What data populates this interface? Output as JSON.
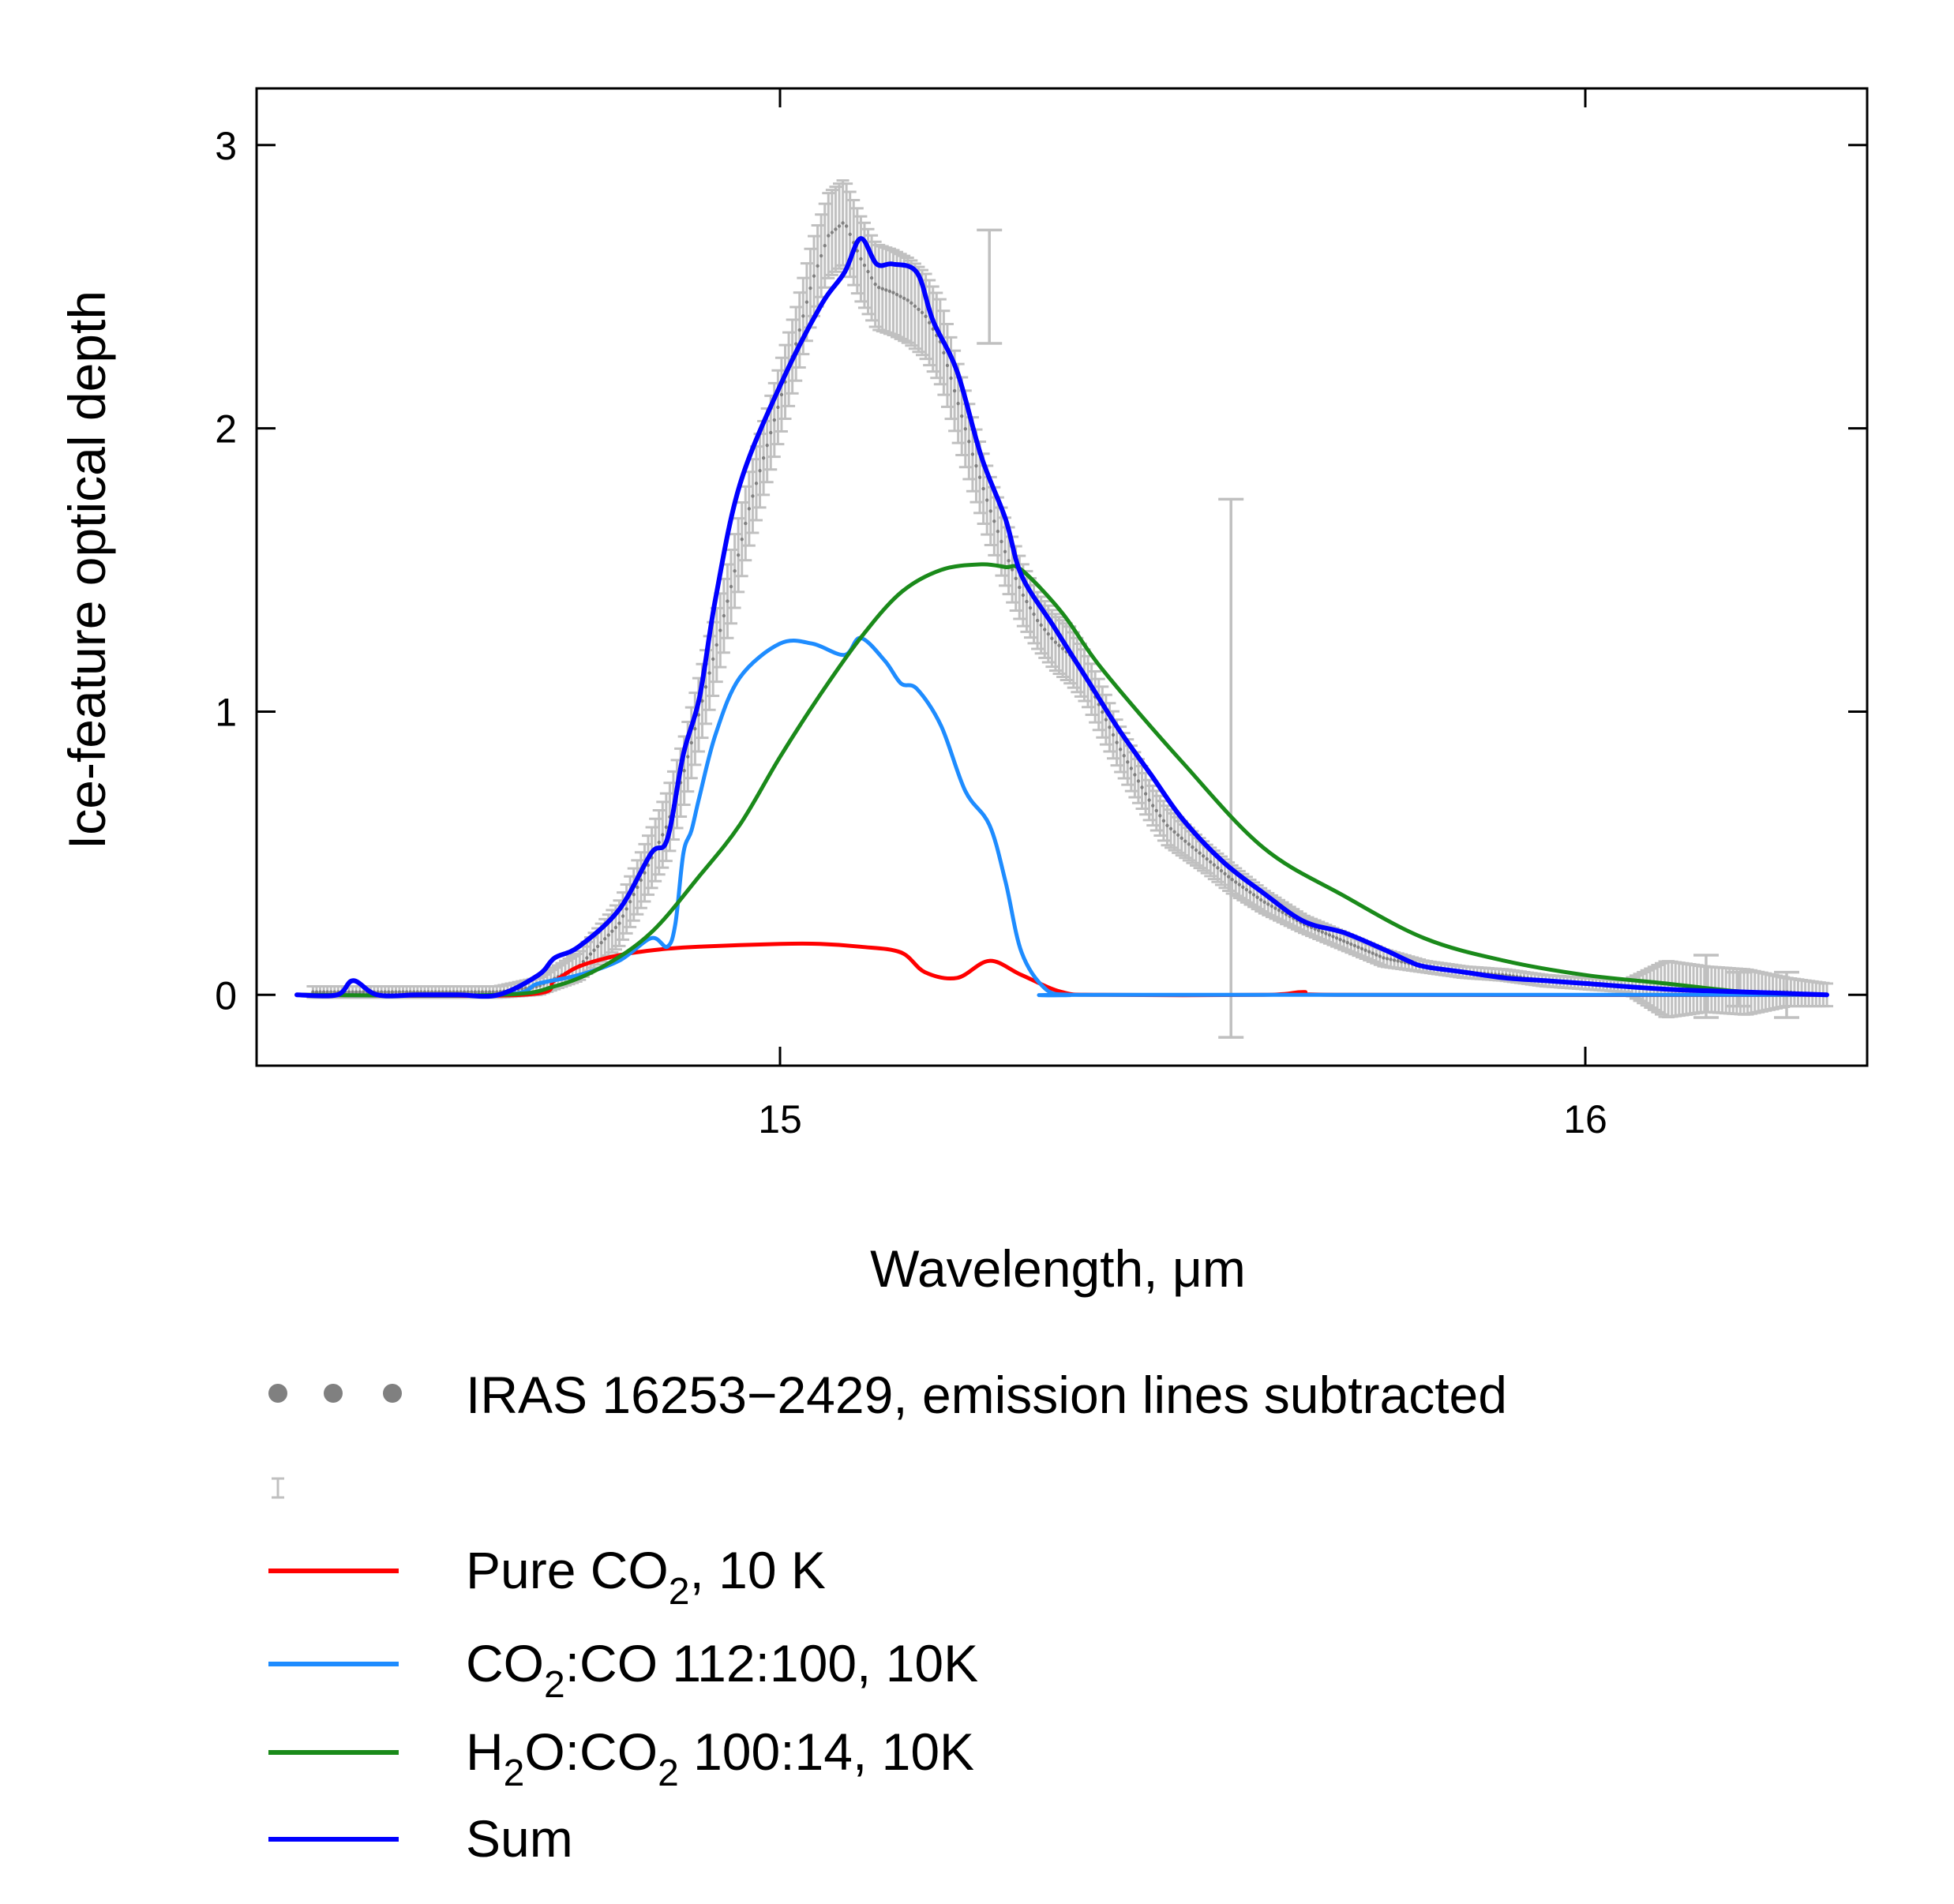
{
  "chart_data": {
    "type": "line",
    "title": "",
    "xlabel": "Wavelength, μm",
    "ylabel": "Ice-feature optical depth",
    "xlim": [
      14.35,
      16.35
    ],
    "ylim": [
      -0.25,
      3.2
    ],
    "xticks": [
      15,
      16
    ],
    "xtick_labels": [
      "15",
      "16"
    ],
    "yticks": [
      0,
      1,
      2,
      3
    ],
    "ytick_labels": [
      "0",
      "1",
      "2",
      "3"
    ],
    "grid": false,
    "legend_placement": "below",
    "observed": {
      "name": "IRAS 16253−2429, emission lines subtracted",
      "x": [
        14.42,
        14.5,
        14.55,
        14.6,
        14.65,
        14.7,
        14.75,
        14.8,
        14.83,
        14.86,
        14.88,
        14.9,
        14.92,
        14.94,
        14.96,
        14.98,
        15.0,
        15.02,
        15.04,
        15.06,
        15.08,
        15.1,
        15.12,
        15.14,
        15.16,
        15.18,
        15.2,
        15.22,
        15.24,
        15.26,
        15.28,
        15.3,
        15.32,
        15.34,
        15.36,
        15.38,
        15.4,
        15.42,
        15.44,
        15.46,
        15.48,
        15.5,
        15.53,
        15.56,
        15.6,
        15.65,
        15.7,
        15.75,
        15.8,
        15.85,
        15.9,
        15.95,
        16.0,
        16.05,
        16.1,
        16.15,
        16.2,
        16.25,
        16.3
      ],
      "y": [
        0.01,
        0.01,
        0.01,
        0.01,
        0.01,
        0.03,
        0.1,
        0.25,
        0.42,
        0.6,
        0.78,
        1.0,
        1.22,
        1.45,
        1.7,
        1.9,
        2.1,
        2.3,
        2.52,
        2.68,
        2.73,
        2.6,
        2.5,
        2.48,
        2.45,
        2.4,
        2.3,
        2.1,
        1.9,
        1.72,
        1.56,
        1.42,
        1.32,
        1.25,
        1.2,
        1.12,
        1.0,
        0.88,
        0.78,
        0.68,
        0.6,
        0.55,
        0.48,
        0.41,
        0.33,
        0.25,
        0.19,
        0.13,
        0.1,
        0.08,
        0.07,
        0.05,
        0.04,
        0.03,
        0.02,
        0.02,
        0.01,
        0.01,
        0.0
      ],
      "error": [
        0.02,
        0.02,
        0.02,
        0.02,
        0.02,
        0.03,
        0.05,
        0.08,
        0.1,
        0.12,
        0.12,
        0.13,
        0.13,
        0.13,
        0.13,
        0.13,
        0.13,
        0.13,
        0.14,
        0.15,
        0.15,
        0.15,
        0.15,
        0.15,
        0.15,
        0.15,
        0.15,
        0.14,
        0.13,
        0.12,
        0.12,
        0.11,
        0.1,
        0.1,
        0.1,
        0.09,
        0.09,
        0.08,
        0.08,
        0.07,
        0.07,
        0.06,
        0.05,
        0.05,
        0.04,
        0.03,
        0.03,
        0.03,
        0.02,
        0.02,
        0.02,
        0.02,
        0.02,
        0.02,
        0.1,
        0.08,
        0.08,
        0.05,
        0.04
      ],
      "large_error_bars": [
        {
          "x": 15.56,
          "y": 0.8,
          "error": 0.95
        },
        {
          "x": 15.26,
          "y": 2.5,
          "error": 0.2
        },
        {
          "x": 16.15,
          "y": 0.03,
          "error": 0.11
        },
        {
          "x": 16.19,
          "y": 0.02,
          "error": 0.06
        },
        {
          "x": 16.25,
          "y": 0.0,
          "error": 0.08
        }
      ]
    },
    "series": [
      {
        "name": "Pure CO2, 10 K",
        "color": "#ff0000",
        "x": [
          14.4,
          14.68,
          14.72,
          14.75,
          14.8,
          14.85,
          14.9,
          15.0,
          15.05,
          15.1,
          15.15,
          15.18,
          15.22,
          15.26,
          15.3,
          15.35,
          15.4,
          15.6,
          15.65,
          15.7,
          16.3
        ],
        "y": [
          0.0,
          0.0,
          0.05,
          0.1,
          0.14,
          0.16,
          0.17,
          0.18,
          0.18,
          0.17,
          0.15,
          0.08,
          0.06,
          0.12,
          0.07,
          0.01,
          0.0,
          0.0,
          0.01,
          0.0,
          0.0
        ]
      },
      {
        "name": "CO2:CO 112:100, 10K",
        "color": "#1e8cff",
        "x": [
          14.4,
          14.65,
          14.7,
          14.75,
          14.8,
          14.84,
          14.86,
          14.87,
          14.88,
          14.89,
          14.9,
          14.92,
          14.95,
          15.0,
          15.04,
          15.08,
          15.1,
          15.13,
          15.15,
          15.17,
          15.2,
          15.23,
          15.26,
          15.28,
          15.3,
          15.33,
          15.36,
          15.4,
          16.3
        ],
        "y": [
          0.0,
          0.0,
          0.04,
          0.07,
          0.12,
          0.2,
          0.17,
          0.25,
          0.5,
          0.58,
          0.7,
          0.92,
          1.12,
          1.24,
          1.24,
          1.2,
          1.26,
          1.18,
          1.1,
          1.08,
          0.95,
          0.72,
          0.6,
          0.4,
          0.15,
          0.02,
          0.0,
          0.0,
          0.0
        ]
      },
      {
        "name": "H2O:CO2 100:14, 10K",
        "color": "#1a8a1a",
        "x": [
          14.4,
          14.65,
          14.72,
          14.78,
          14.84,
          14.9,
          14.95,
          15.0,
          15.05,
          15.1,
          15.15,
          15.2,
          15.25,
          15.28,
          15.3,
          15.35,
          15.4,
          15.5,
          15.6,
          15.7,
          15.8,
          15.9,
          16.0,
          16.1,
          16.2,
          16.3
        ],
        "y": [
          0.0,
          0.0,
          0.03,
          0.1,
          0.22,
          0.42,
          0.6,
          0.84,
          1.06,
          1.26,
          1.42,
          1.5,
          1.52,
          1.51,
          1.5,
          1.35,
          1.15,
          0.82,
          0.52,
          0.35,
          0.2,
          0.12,
          0.07,
          0.04,
          0.01,
          0.0
        ]
      },
      {
        "name": "Sum",
        "color": "#0000ff",
        "x": [
          14.4,
          14.45,
          14.47,
          14.5,
          14.55,
          14.6,
          14.65,
          14.7,
          14.72,
          14.75,
          14.8,
          14.84,
          14.86,
          14.88,
          14.9,
          14.92,
          14.95,
          15.0,
          15.05,
          15.08,
          15.1,
          15.12,
          15.14,
          15.17,
          15.19,
          15.22,
          15.25,
          15.28,
          15.3,
          15.34,
          15.38,
          15.42,
          15.46,
          15.5,
          15.55,
          15.6,
          15.65,
          15.7,
          15.75,
          15.78,
          15.8,
          15.85,
          15.9,
          15.95,
          16.0,
          16.1,
          16.2,
          16.3
        ],
        "y": [
          0.0,
          0.0,
          0.05,
          0.0,
          0.0,
          0.0,
          0.0,
          0.07,
          0.13,
          0.17,
          0.3,
          0.5,
          0.55,
          0.85,
          1.05,
          1.4,
          1.8,
          2.15,
          2.43,
          2.55,
          2.67,
          2.58,
          2.58,
          2.55,
          2.38,
          2.2,
          1.9,
          1.68,
          1.48,
          1.3,
          1.12,
          0.94,
          0.78,
          0.62,
          0.47,
          0.36,
          0.26,
          0.22,
          0.16,
          0.12,
          0.1,
          0.08,
          0.06,
          0.05,
          0.04,
          0.02,
          0.01,
          0.0
        ]
      }
    ],
    "legend": [
      {
        "kind": "dots",
        "label": "IRAS 16253−2429, emission lines subtracted",
        "color": "#808080"
      },
      {
        "kind": "errorbar",
        "label": "",
        "color": "#c0c0c0"
      },
      {
        "kind": "line",
        "label_parts": [
          "Pure CO",
          "2",
          ", 10 K"
        ],
        "color": "#ff0000"
      },
      {
        "kind": "line",
        "label_parts": [
          "CO",
          "2",
          ":CO 112:100, 10K"
        ],
        "color": "#1e8cff"
      },
      {
        "kind": "line",
        "label_parts": [
          "H",
          "2",
          "O:CO",
          "2",
          " 100:14, 10K"
        ],
        "color": "#1a8a1a"
      },
      {
        "kind": "line",
        "label_parts": [
          "Sum"
        ],
        "color": "#0000ff"
      }
    ]
  }
}
